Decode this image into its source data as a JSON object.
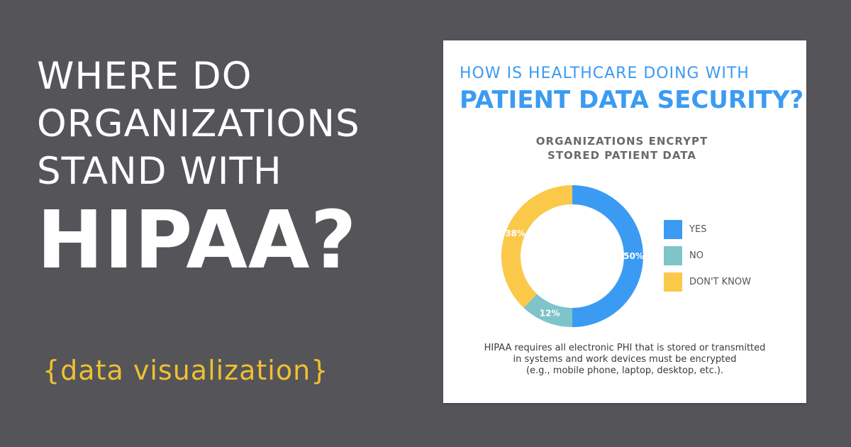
{
  "headline": {
    "line1": "WHERE DO",
    "line2": "ORGANIZATIONS",
    "line3": "STAND WITH",
    "big": "HIPAA?"
  },
  "subtag": "{data visualization}",
  "card": {
    "title_line1": "HOW IS HEALTHCARE DOING WITH",
    "title_line2": "PATIENT DATA SECURITY?",
    "footnote_lines": [
      "HIPAA requires all electronic PHI that is stored or transmitted",
      "in systems and work devices must be encrypted",
      "(e.g., mobile phone, laptop, desktop, etc.)."
    ]
  },
  "colors": {
    "background": "#555559",
    "accent_yellow": "#f0c030",
    "title_blue": "#3b9bf2",
    "yes": "#3b9bf2",
    "no": "#7ec4c8",
    "dont_know": "#fbc94a"
  },
  "chart_data": {
    "type": "pie",
    "variant": "donut",
    "title_lines": [
      "ORGANIZATIONS ENCRYPT",
      "STORED PATIENT DATA"
    ],
    "categories": [
      "YES",
      "NO",
      "DON'T KNOW"
    ],
    "values": [
      50,
      12,
      38
    ],
    "value_labels": [
      "50%",
      "12%",
      "38%"
    ],
    "colors": [
      "#3b9bf2",
      "#7ec4c8",
      "#fbc94a"
    ],
    "legend_position": "right"
  }
}
